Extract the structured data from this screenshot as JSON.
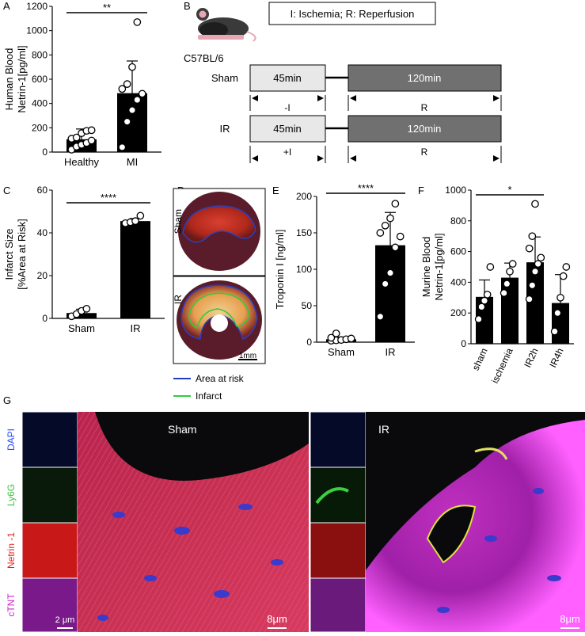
{
  "panels": {
    "A": "A",
    "B": "B",
    "C": "C",
    "D": "D",
    "E": "E",
    "F": "F",
    "G": "G"
  },
  "chart_data": [
    {
      "id": "A",
      "type": "bar",
      "categories": [
        "Healthy",
        "MI"
      ],
      "values": [
        105,
        485
      ],
      "errors": [
        85,
        265
      ],
      "points": [
        [
          20,
          45,
          60,
          75,
          95,
          110,
          120,
          155,
          175,
          180
        ],
        [
          40,
          250,
          345,
          430,
          480,
          520,
          560,
          700,
          1070
        ]
      ],
      "ylabel_lines": [
        "Human Blood",
        "Netrin-1[pg/ml]"
      ],
      "ylim": [
        0,
        1200
      ],
      "yticks": [
        0,
        200,
        400,
        600,
        800,
        1000,
        1200
      ],
      "significance": "**"
    },
    {
      "id": "C",
      "type": "bar",
      "categories": [
        "Sham",
        "IR"
      ],
      "values": [
        2.5,
        45.5
      ],
      "errors": [
        1.8,
        1.2
      ],
      "points": [
        [
          1,
          2,
          3.5,
          4.5
        ],
        [
          44.5,
          45,
          45.5,
          48
        ]
      ],
      "ylabel_lines": [
        "Infarct Size",
        "[%Area at Risk]"
      ],
      "ylim": [
        0,
        60
      ],
      "yticks": [
        0,
        20,
        40,
        60
      ],
      "significance": "****"
    },
    {
      "id": "E",
      "type": "bar",
      "categories": [
        "Sham",
        "IR"
      ],
      "values": [
        4,
        133
      ],
      "errors": [
        3,
        45
      ],
      "points": [
        [
          2,
          2.5,
          3,
          4,
          5,
          6,
          12
        ],
        [
          35,
          80,
          95,
          130,
          145,
          150,
          160,
          170,
          190
        ]
      ],
      "ylabel_lines": [
        "Troponin I [ng/ml]"
      ],
      "ylim": [
        0,
        200
      ],
      "yticks": [
        0,
        50,
        100,
        150,
        200
      ],
      "significance": "****"
    },
    {
      "id": "F",
      "type": "bar",
      "categories": [
        "sham",
        "ischemia",
        "IR2h",
        "IR4h"
      ],
      "values": [
        305,
        430,
        530,
        265
      ],
      "errors": [
        110,
        95,
        165,
        185
      ],
      "points": [
        [
          160,
          240,
          280,
          320,
          500
        ],
        [
          330,
          390,
          470,
          520
        ],
        [
          290,
          380,
          470,
          520,
          560,
          620,
          700,
          910
        ],
        [
          80,
          200,
          300,
          440,
          500
        ]
      ],
      "ylabel_lines": [
        "Murine Blood",
        "Netrin-1[pg/ml]"
      ],
      "ylim": [
        0,
        1000
      ],
      "yticks": [
        0,
        200,
        400,
        600,
        800,
        1000
      ],
      "significance": "*"
    }
  ],
  "protocol": {
    "strain": "C57BL/6",
    "legend": "I: Ischemia; R: Reperfusion",
    "rows": [
      {
        "label": "Sham",
        "box1": "45min",
        "box2": "120min",
        "arrow1": "-I",
        "arrow2": "R"
      },
      {
        "label": "IR",
        "box1": "45min",
        "box2": "120min",
        "arrow1": "+I",
        "arrow2": "R"
      }
    ]
  },
  "staining": {
    "row_labels": [
      "Sham",
      "IR"
    ],
    "scale": "1mm",
    "legend": [
      {
        "label": "Area at risk",
        "color": "#1f3fbf"
      },
      {
        "label": "Infarct",
        "color": "#2ecc40"
      }
    ]
  },
  "microscopy": {
    "channels": [
      {
        "label": "DAPI",
        "color": "#2a4cff"
      },
      {
        "label": "Ly6G",
        "color": "#39c13d"
      },
      {
        "label": "Netrin -1",
        "color": "#e02020"
      },
      {
        "label": "cTNT",
        "color": "#d020d0"
      }
    ],
    "groups": [
      "Sham",
      "IR"
    ],
    "scale_small": "2 μm",
    "scale_large": "8μm"
  }
}
